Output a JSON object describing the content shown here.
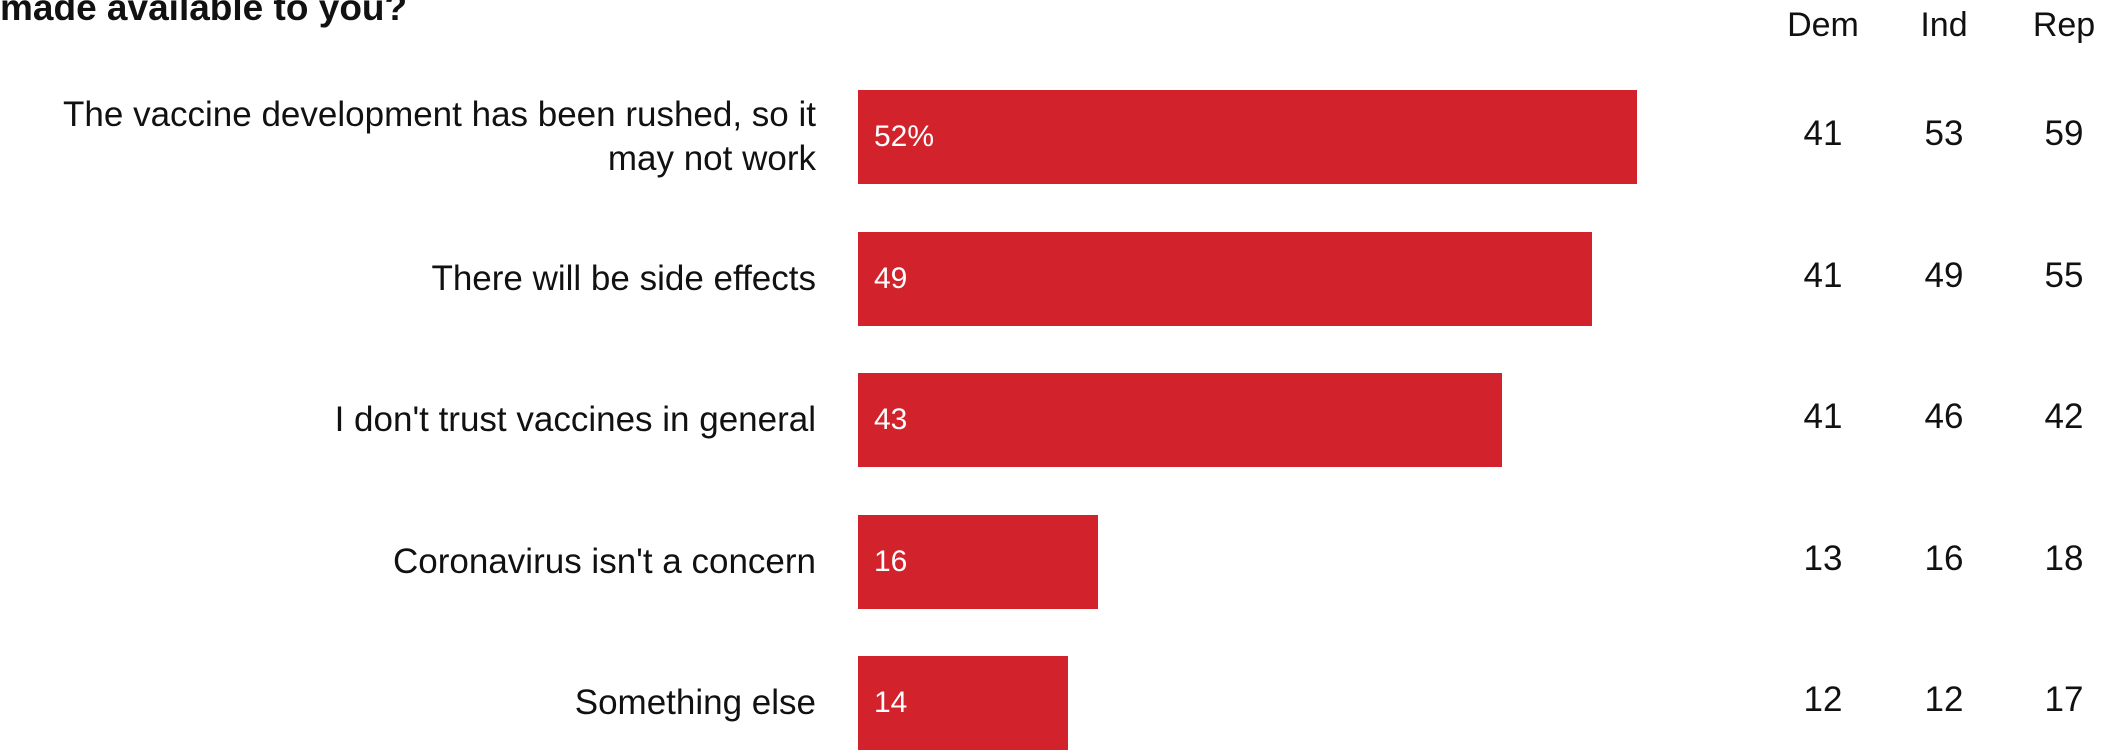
{
  "title": "made available to you?",
  "colors": {
    "bar": "#d2222b"
  },
  "columns": [
    "Dem",
    "Ind",
    "Rep"
  ],
  "chart_data": {
    "type": "bar",
    "orientation": "horizontal",
    "title": "made available to you?",
    "categories": [
      "The vaccine development has been rushed, so it may not work",
      "There will be side effects",
      "I don't trust vaccines in general",
      "Coronavirus isn't a concern",
      "Something else"
    ],
    "values": [
      52,
      49,
      43,
      16,
      14
    ],
    "value_labels": [
      "52%",
      "49",
      "43",
      "16",
      "14"
    ],
    "unit": "%",
    "xlim": [
      0,
      100
    ],
    "grid": false,
    "table": {
      "columns": [
        "Dem",
        "Ind",
        "Rep"
      ],
      "rows": [
        [
          41,
          53,
          59
        ],
        [
          41,
          49,
          55
        ],
        [
          41,
          46,
          42
        ],
        [
          13,
          16,
          18
        ],
        [
          12,
          12,
          17
        ]
      ]
    }
  }
}
